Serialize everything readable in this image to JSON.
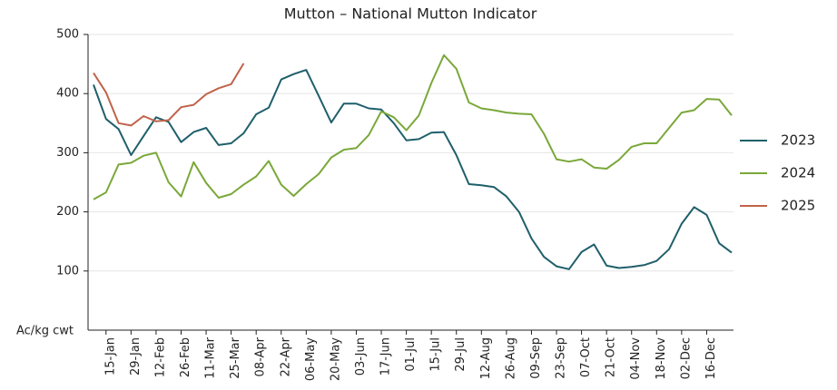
{
  "chart_data": {
    "type": "line",
    "title": "Mutton – National Mutton Indicator",
    "y_label": "Ac/kg cwt",
    "categories": [
      null,
      "15-Jan",
      null,
      "29-Jan",
      null,
      "12-Feb",
      null,
      "26-Feb",
      null,
      "11-Mar",
      null,
      "25-Mar",
      null,
      "08-Apr",
      null,
      "22-Apr",
      null,
      "06-May",
      null,
      "20-May",
      null,
      "03-Jun",
      null,
      "17-Jun",
      null,
      "01-Jul",
      null,
      "15-Jul",
      null,
      "29-Jul",
      null,
      "12-Aug",
      null,
      "26-Aug",
      null,
      "09-Sep",
      null,
      "23-Sep",
      null,
      "07-Oct",
      null,
      "21-Oct",
      null,
      "04-Nov",
      null,
      "18-Nov",
      null,
      "02-Dec",
      null,
      "16-Dec",
      null,
      null
    ],
    "series": [
      {
        "name": "2023",
        "color": "#1f5f6b",
        "values": [
          415,
          357,
          340,
          296,
          328,
          360,
          352,
          318,
          335,
          342,
          313,
          316,
          333,
          365,
          376,
          424,
          433,
          440,
          396,
          351,
          383,
          383,
          375,
          373,
          350,
          321,
          323,
          334,
          335,
          296,
          247,
          245,
          242,
          226,
          200,
          155,
          124,
          108,
          103,
          132,
          145,
          109,
          105,
          107,
          110,
          117,
          137,
          180,
          208,
          195,
          147,
          131
        ]
      },
      {
        "name": "2024",
        "color": "#7aa83a",
        "values": [
          221,
          233,
          280,
          283,
          295,
          300,
          250,
          226,
          284,
          249,
          224,
          230,
          246,
          260,
          286,
          246,
          227,
          247,
          264,
          292,
          305,
          308,
          330,
          370,
          360,
          338,
          363,
          418,
          465,
          442,
          385,
          375,
          372,
          368,
          366,
          365,
          332,
          289,
          285,
          289,
          275,
          273,
          288,
          310,
          316,
          316,
          342,
          368,
          372,
          391,
          390,
          363
        ]
      },
      {
        "name": "2025",
        "color": "#c0634a",
        "values": [
          435,
          402,
          350,
          346,
          362,
          353,
          355,
          377,
          381,
          399,
          409,
          416,
          451,
          null,
          null,
          null,
          null,
          null,
          null,
          null,
          null,
          null,
          null,
          null,
          null,
          null,
          null,
          null,
          null,
          null,
          null,
          null,
          null,
          null,
          null,
          null,
          null,
          null,
          null,
          null,
          null,
          null,
          null,
          null,
          null,
          null,
          null,
          null,
          null,
          null,
          null,
          null
        ]
      }
    ],
    "ylim": [
      0,
      500
    ],
    "yticks": [
      100,
      200,
      300,
      400,
      500
    ],
    "grid": true,
    "legend": "right"
  }
}
